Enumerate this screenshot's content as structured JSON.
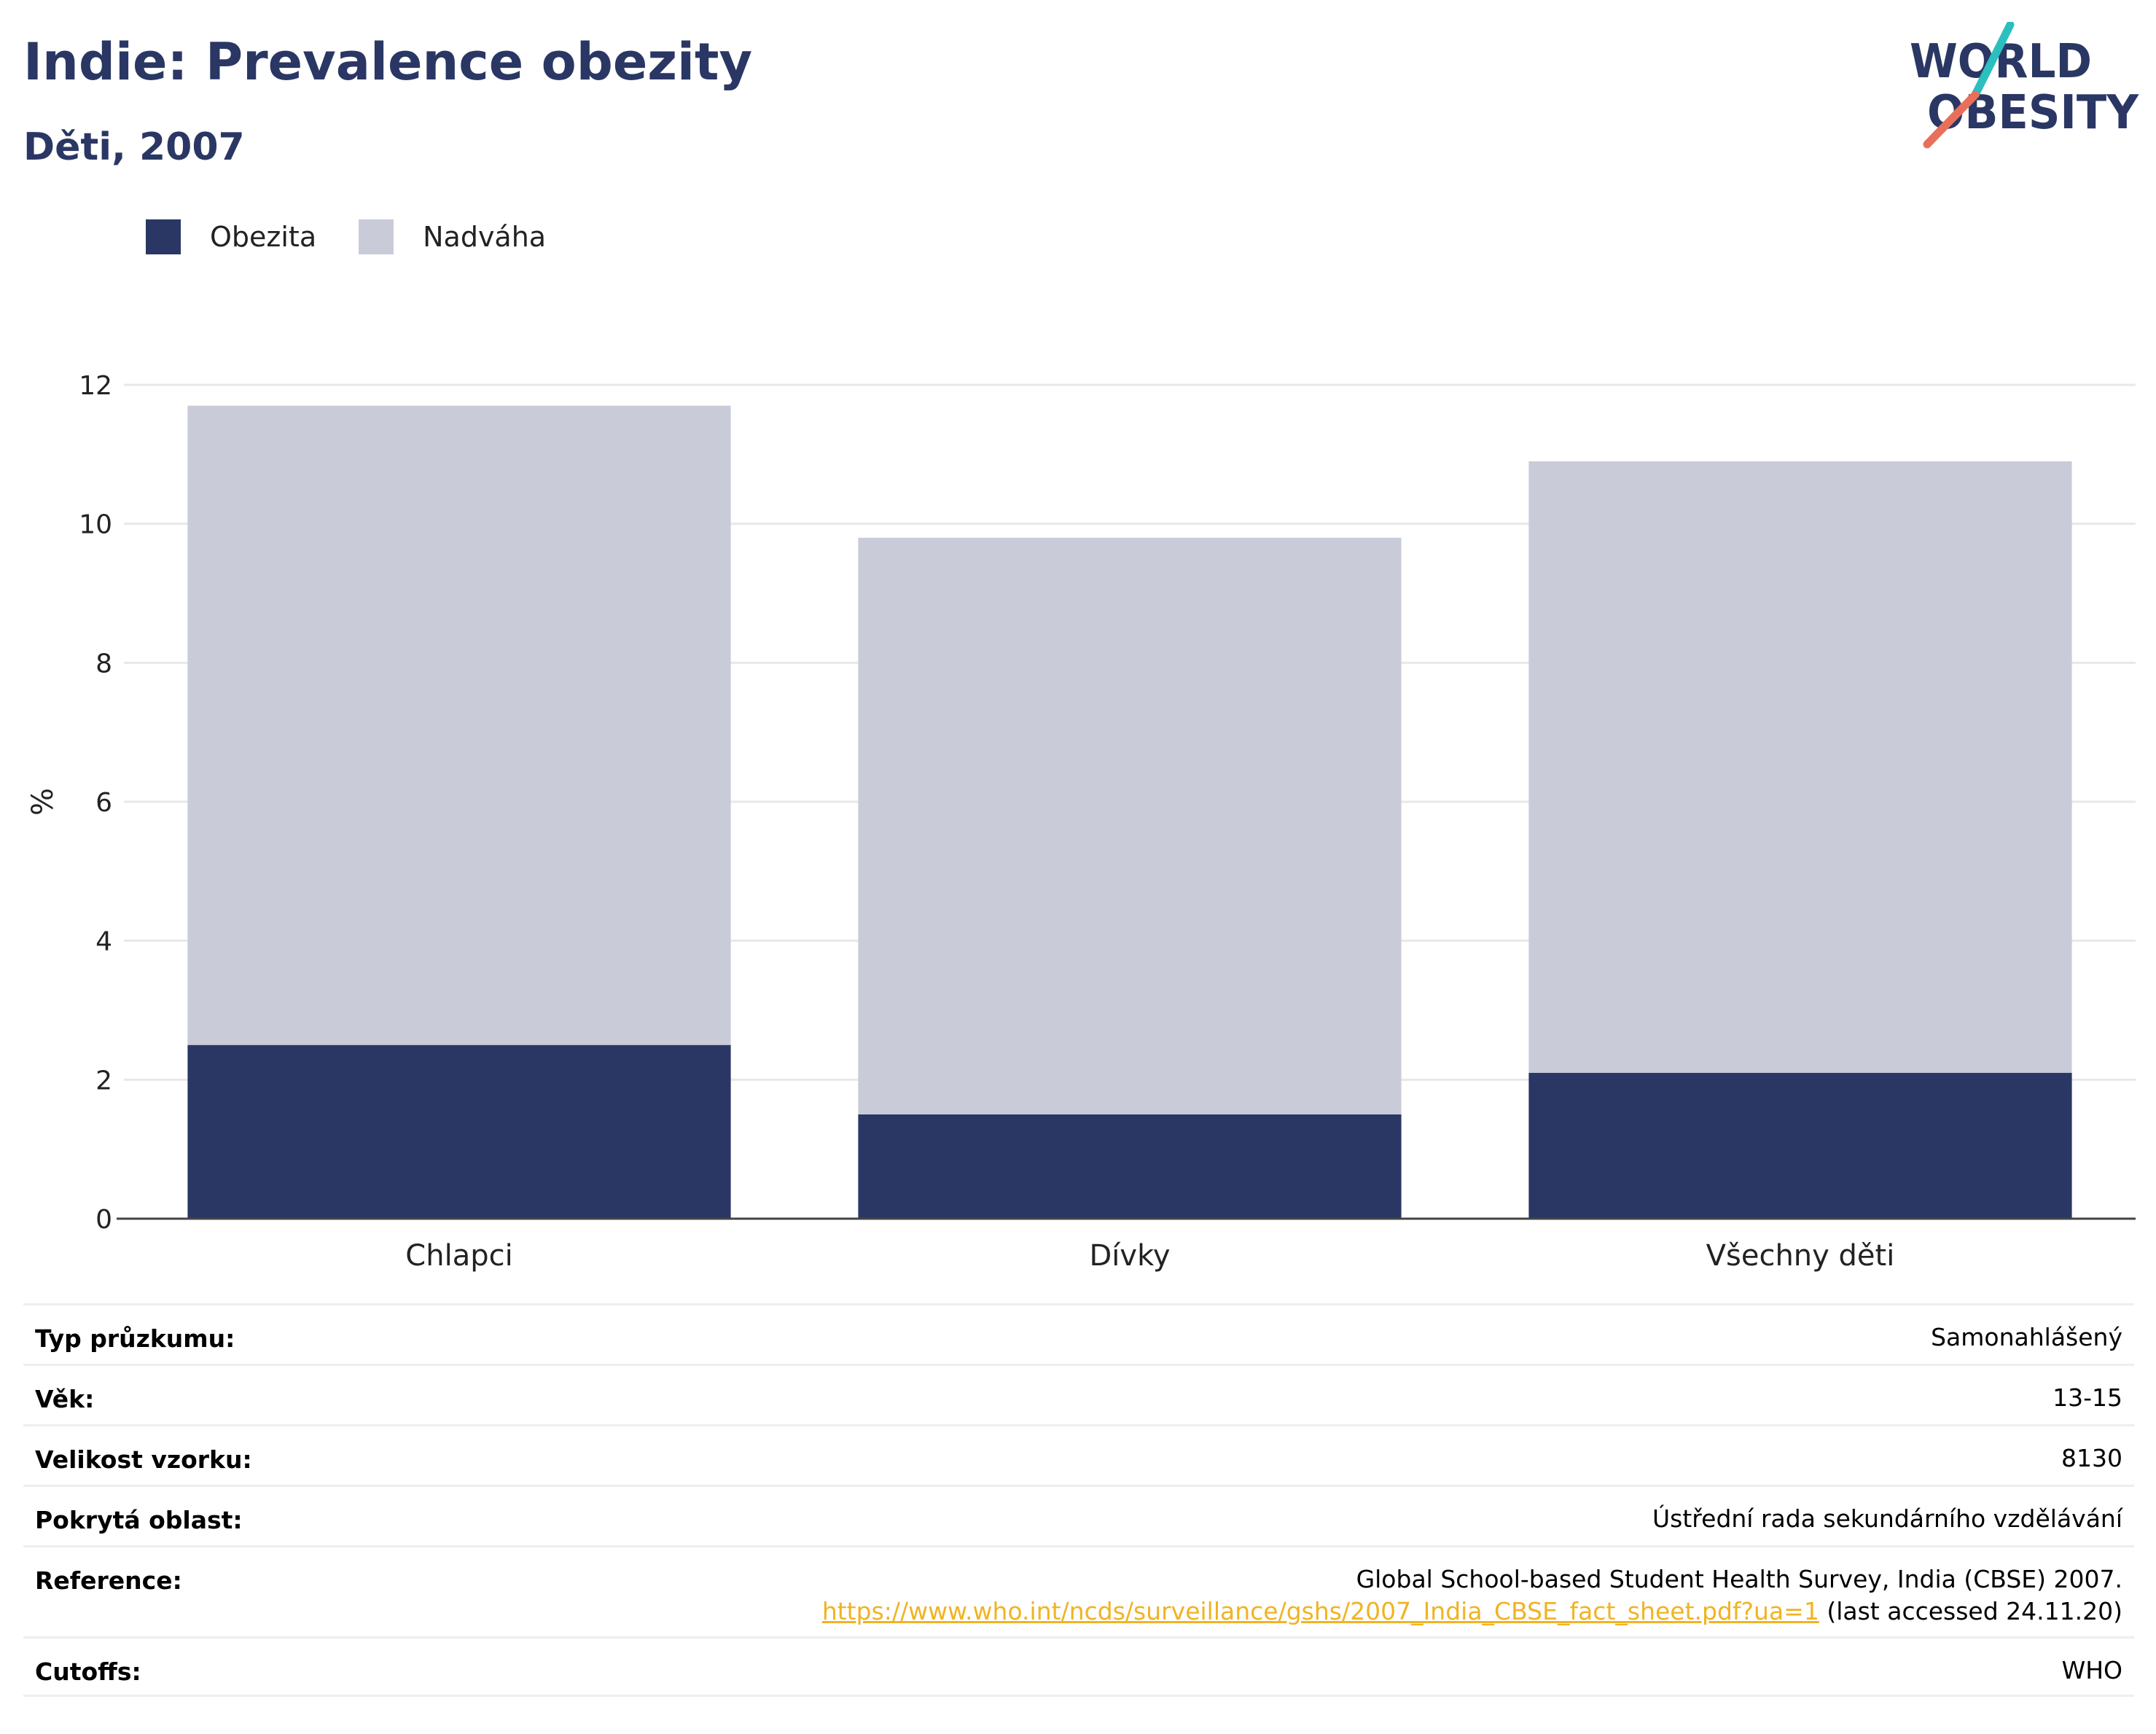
{
  "header": {
    "title": "Indie: Prevalence obezity",
    "subtitle": "Děti, 2007"
  },
  "logo": {
    "line1": "WORLD",
    "line2": "OBESITY",
    "colors": {
      "text": "#2a3764",
      "slash_teal": "#2bbfbf",
      "slash_coral": "#e8705a"
    }
  },
  "colors": {
    "obesity": "#2a3764",
    "overweight": "#c9ccd8",
    "grid": "#e8e8e8",
    "axis": "#444444"
  },
  "chart_data": {
    "type": "bar",
    "stacked": true,
    "categories": [
      "Chlapci",
      "Dívky",
      "Všechny děti"
    ],
    "series": [
      {
        "name": "Obezita",
        "values": [
          2.5,
          1.5,
          2.1
        ]
      },
      {
        "name": "Nadváha",
        "values": [
          9.2,
          8.3,
          8.8
        ]
      }
    ],
    "ylabel": "%",
    "ylim": [
      0,
      12
    ],
    "yticks": [
      "0",
      "2",
      "4",
      "6",
      "8",
      "10",
      "12"
    ],
    "grid": true,
    "legend": "top-left"
  },
  "info": {
    "survey_type": {
      "label": "Typ průzkumu:",
      "value": "Samonahlášený"
    },
    "age": {
      "label": "Věk:",
      "value": "13-15"
    },
    "sample_size": {
      "label": "Velikost vzorku:",
      "value": "8130"
    },
    "area": {
      "label": "Pokrytá oblast:",
      "value": "Ústřední rada sekundárního vzdělávání"
    },
    "reference": {
      "label": "Reference:",
      "text": "Global School-based Student Health Survey, India (CBSE) 2007.",
      "link": "https://www.who.int/ncds/surveillance/gshs/2007_India_CBSE_fact_sheet.pdf?ua=1",
      "suffix": " (last accessed 24.11.20)"
    },
    "cutoffs": {
      "label": "Cutoffs:",
      "value": "WHO"
    }
  }
}
